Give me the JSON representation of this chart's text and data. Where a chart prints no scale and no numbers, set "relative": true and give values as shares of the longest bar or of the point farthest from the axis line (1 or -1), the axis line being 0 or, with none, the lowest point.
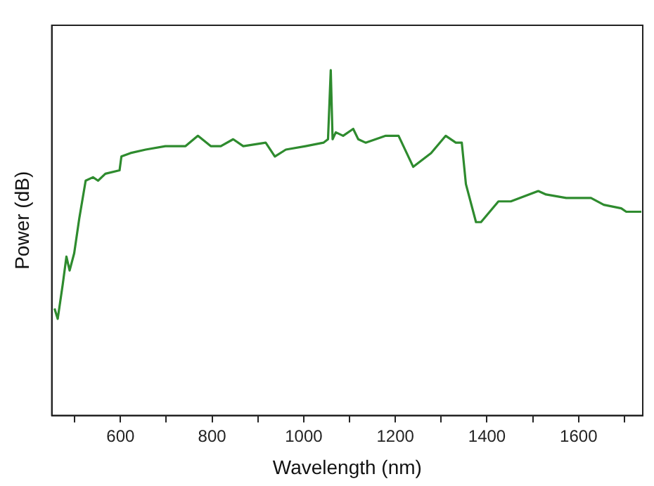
{
  "chart_data": {
    "type": "line",
    "xlabel": "Wavelength (nm)",
    "ylabel": "Power (dB)",
    "relative": true,
    "xlim": [
      450,
      1740
    ],
    "xticks": [
      {
        "value": 500,
        "label": null
      },
      600,
      {
        "value": 700,
        "label": null
      },
      800,
      {
        "value": 900,
        "label": null
      },
      1000,
      {
        "value": 1100,
        "label": null
      },
      1200,
      {
        "value": 1300,
        "label": null
      },
      1400,
      {
        "value": 1500,
        "label": null
      },
      1600,
      {
        "value": 1700,
        "label": null
      }
    ],
    "grid": false,
    "legend": false,
    "marker": "none",
    "line_style": "solid",
    "series": [
      {
        "color": "#2e8b2e",
        "x": [
          456,
          463,
          474,
          482,
          489,
          499,
          510,
          524,
          540,
          551,
          567,
          598,
          602,
          622,
          655,
          698,
          742,
          769,
          797,
          819,
          846,
          868,
          917,
          937,
          961,
          1004,
          1043,
          1053,
          1059,
          1063,
          1070,
          1086,
          1108,
          1119,
          1135,
          1179,
          1207,
          1239,
          1278,
          1310,
          1332,
          1345,
          1354,
          1376,
          1387,
          1425,
          1452,
          1512,
          1529,
          1573,
          1627,
          1655,
          1693,
          1704,
          1737
        ],
        "values": [
          0.31,
          0.28,
          0.38,
          0.46,
          0.42,
          0.47,
          0.57,
          0.68,
          0.69,
          0.68,
          0.7,
          0.71,
          0.75,
          0.76,
          0.77,
          0.78,
          0.78,
          0.81,
          0.78,
          0.78,
          0.8,
          0.78,
          0.79,
          0.75,
          0.77,
          0.78,
          0.79,
          0.8,
          1,
          0.8,
          0.82,
          0.81,
          0.83,
          0.8,
          0.79,
          0.81,
          0.81,
          0.72,
          0.76,
          0.81,
          0.79,
          0.79,
          0.67,
          0.56,
          0.56,
          0.62,
          0.62,
          0.65,
          0.64,
          0.63,
          0.63,
          0.61,
          0.6,
          0.59,
          0.59
        ]
      }
    ]
  }
}
